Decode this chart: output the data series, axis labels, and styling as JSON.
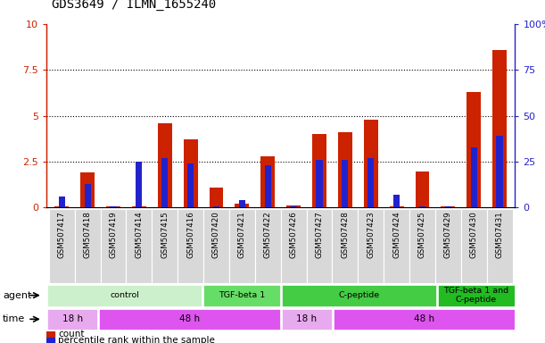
{
  "title": "GDS3649 / ILMN_1655240",
  "samples": [
    "GSM507417",
    "GSM507418",
    "GSM507419",
    "GSM507414",
    "GSM507415",
    "GSM507416",
    "GSM507420",
    "GSM507421",
    "GSM507422",
    "GSM507426",
    "GSM507427",
    "GSM507428",
    "GSM507423",
    "GSM507424",
    "GSM507425",
    "GSM507429",
    "GSM507430",
    "GSM507431"
  ],
  "count_values": [
    0.05,
    1.9,
    0.05,
    0.05,
    4.6,
    3.7,
    1.1,
    0.2,
    2.8,
    0.1,
    4.0,
    4.1,
    4.8,
    0.05,
    1.95,
    0.05,
    6.3,
    8.6
  ],
  "percentile_values": [
    6,
    13,
    0.5,
    25,
    27,
    24,
    0.5,
    4,
    23,
    0.5,
    26,
    26,
    27,
    7,
    0.5,
    0.5,
    33,
    39
  ],
  "count_color": "#cc2200",
  "percentile_color": "#2222cc",
  "ylim_left": [
    0,
    10
  ],
  "ylim_right": [
    0,
    100
  ],
  "yticks_left": [
    0,
    2.5,
    5.0,
    7.5,
    10
  ],
  "yticks_right": [
    0,
    25,
    50,
    75,
    100
  ],
  "ytick_labels_left": [
    "0",
    "2.5",
    "5",
    "7.5",
    "10"
  ],
  "ytick_labels_right": [
    "0",
    "25",
    "50",
    "75",
    "100%"
  ],
  "left_axis_color": "#cc2200",
  "right_axis_color": "#2222cc",
  "agent_groups": [
    {
      "label": "control",
      "start": 0,
      "end": 5,
      "color": "#ccf0cc"
    },
    {
      "label": "TGF-beta 1",
      "start": 6,
      "end": 8,
      "color": "#66dd66"
    },
    {
      "label": "C-peptide",
      "start": 9,
      "end": 14,
      "color": "#44cc44"
    },
    {
      "label": "TGF-beta 1 and\nC-peptide",
      "start": 15,
      "end": 17,
      "color": "#22bb22"
    }
  ],
  "time_groups": [
    {
      "label": "18 h",
      "start": 0,
      "end": 1,
      "color": "#e8aaee"
    },
    {
      "label": "48 h",
      "start": 2,
      "end": 8,
      "color": "#dd55ee"
    },
    {
      "label": "18 h",
      "start": 9,
      "end": 10,
      "color": "#e8aaee"
    },
    {
      "label": "48 h",
      "start": 11,
      "end": 17,
      "color": "#dd55ee"
    }
  ],
  "legend_count_label": "count",
  "legend_percentile_label": "percentile rank within the sample",
  "sample_bg_color": "#d8d8d8",
  "plot_bg_color": "#ffffff"
}
